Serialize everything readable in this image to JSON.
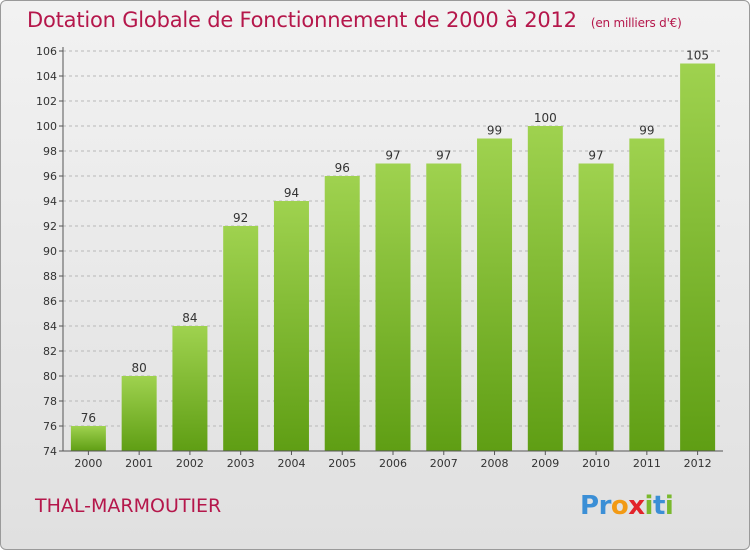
{
  "header": {
    "title": "Dotation Globale de Fonctionnement de 2000 à 2012",
    "unit": "(en milliers d'€)"
  },
  "commune": "THAL-MARMOUTIER",
  "logo": {
    "letters": [
      {
        "ch": "P",
        "color": "#3b8fd6"
      },
      {
        "ch": "r",
        "color": "#3b8fd6"
      },
      {
        "ch": "o",
        "color": "#f29a14"
      },
      {
        "ch": "x",
        "color": "#e2232a"
      },
      {
        "ch": "i",
        "color": "#7ab92e"
      },
      {
        "ch": "t",
        "color": "#3b8fd6"
      },
      {
        "ch": "i",
        "color": "#7ab92e"
      }
    ]
  },
  "chart_data": {
    "type": "bar",
    "title": "Dotation Globale de Fonctionnement de 2000 à 2012",
    "subtitle": "(en milliers d'€)",
    "categories": [
      "2000",
      "2001",
      "2002",
      "2003",
      "2004",
      "2005",
      "2006",
      "2007",
      "2008",
      "2009",
      "2010",
      "2011",
      "2012"
    ],
    "values": [
      76,
      80,
      84,
      92,
      94,
      96,
      97,
      97,
      99,
      100,
      97,
      99,
      105
    ],
    "ylim": [
      74,
      106
    ],
    "yticks": [
      74,
      76,
      78,
      80,
      82,
      84,
      86,
      88,
      90,
      92,
      94,
      96,
      98,
      100,
      102,
      104,
      106
    ],
    "grid": true,
    "bar_color_top": "#9fd24f",
    "bar_color_bottom": "#5f9e14"
  }
}
